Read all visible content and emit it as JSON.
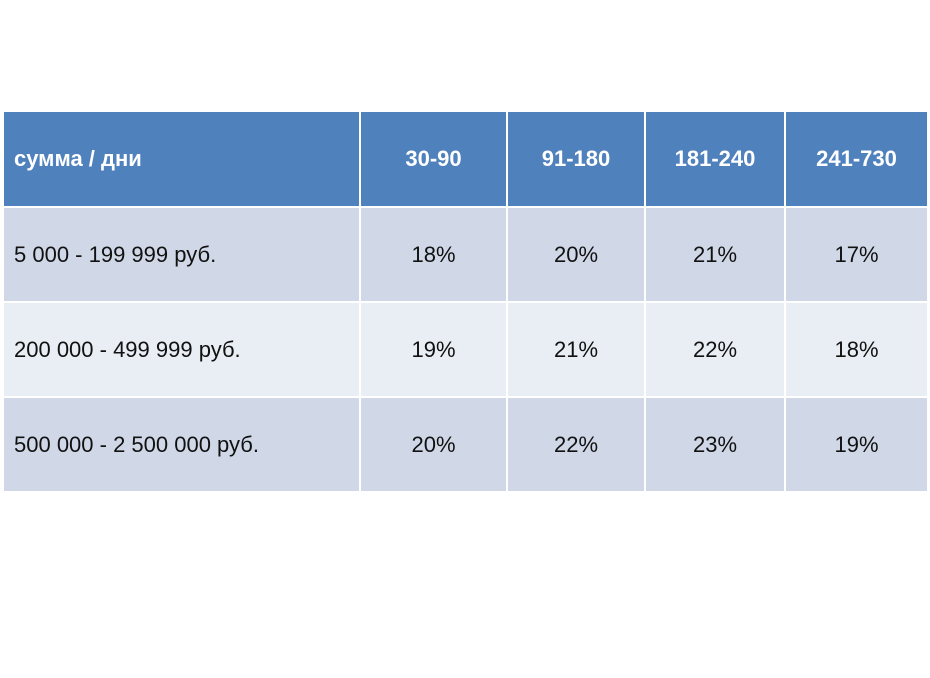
{
  "table": {
    "header": {
      "label": "сумма / дни",
      "columns": [
        "30-90",
        "91-180",
        "181-240",
        "241-730"
      ]
    },
    "rows": [
      {
        "label": "5 000 - 199 999 руб.",
        "values": [
          "18%",
          "20%",
          "21%",
          "17%"
        ]
      },
      {
        "label": "200 000 - 499 999 руб.",
        "values": [
          "19%",
          "21%",
          "22%",
          "18%"
        ]
      },
      {
        "label": "500 000 - 2 500 000 руб.",
        "values": [
          "20%",
          "22%",
          "23%",
          "19%"
        ]
      }
    ]
  },
  "colors": {
    "header_bg": "#4f81bd",
    "row_odd_bg": "#d0d8e8",
    "row_even_bg": "#e9edf4"
  }
}
